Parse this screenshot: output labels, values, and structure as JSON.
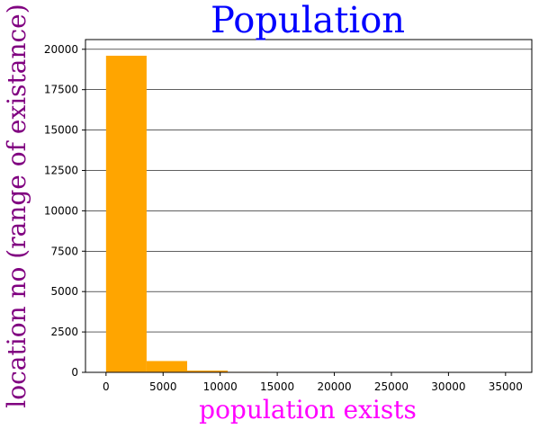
{
  "chart_data": {
    "type": "bar",
    "title": "Population",
    "xlabel": "population exists",
    "ylabel": "location no (range of existance)",
    "bins": [
      {
        "x0": 0,
        "x1": 3554,
        "count": 19600
      },
      {
        "x0": 3554,
        "x1": 7108,
        "count": 700
      },
      {
        "x0": 7108,
        "x1": 10662,
        "count": 110
      },
      {
        "x0": 10662,
        "x1": 14216,
        "count": 30
      },
      {
        "x0": 14216,
        "x1": 17770,
        "count": 12
      },
      {
        "x0": 17770,
        "x1": 21324,
        "count": 6
      },
      {
        "x0": 21324,
        "x1": 24878,
        "count": 4
      },
      {
        "x0": 24878,
        "x1": 28432,
        "count": 3
      },
      {
        "x0": 28432,
        "x1": 31986,
        "count": 2
      },
      {
        "x0": 31986,
        "x1": 35540,
        "count": 2
      }
    ],
    "xlim": [
      -1800,
      37300
    ],
    "ylim": [
      0,
      20600
    ],
    "xticks": [
      0,
      5000,
      10000,
      15000,
      20000,
      25000,
      30000,
      35000
    ],
    "yticks": [
      0,
      2500,
      5000,
      7500,
      10000,
      12500,
      15000,
      17500,
      20000
    ],
    "grid": "horizontal",
    "colors": {
      "bar": "#ffa500",
      "title": "#0000ff",
      "xlabel": "#ff00ff",
      "ylabel": "#800080",
      "grid": "#000000"
    }
  }
}
